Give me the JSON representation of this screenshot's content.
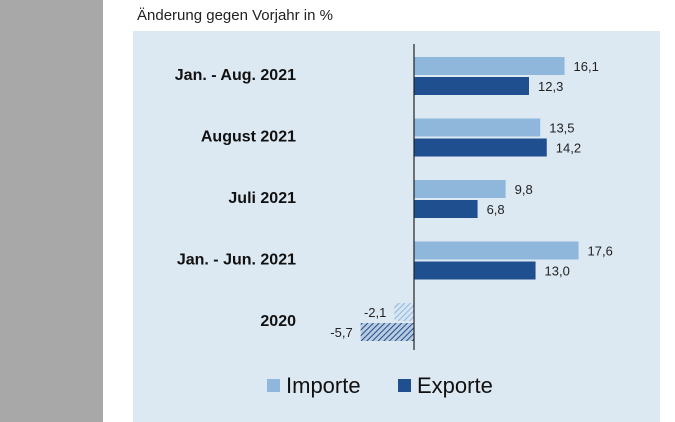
{
  "heading": "Änderung gegen Vorjahr in %",
  "colors": {
    "importe": "#8fb7dc",
    "exporte": "#1f4f8f",
    "background": "#dde9f2",
    "sidebar": "#a8a8a8"
  },
  "chart_data": {
    "type": "bar",
    "orientation": "horizontal",
    "title": "Änderung gegen Vorjahr in %",
    "categories": [
      "Jan. - Aug. 2021",
      "August 2021",
      "Juli 2021",
      "Jan. - Jun. 2021",
      "2020"
    ],
    "series": [
      {
        "name": "Importe",
        "values": [
          16.1,
          13.5,
          9.8,
          17.6,
          -2.1
        ],
        "labels": [
          "16,1",
          "13,5",
          "9,8",
          "17,6",
          "-2,1"
        ]
      },
      {
        "name": "Exporte",
        "values": [
          12.3,
          14.2,
          6.8,
          13.0,
          -5.7
        ],
        "labels": [
          "12,3",
          "14,2",
          "6,8",
          "13,0",
          "-5,7"
        ]
      }
    ],
    "hatched_categories": [
      "2020"
    ],
    "legend_position": "bottom",
    "grid": false
  }
}
